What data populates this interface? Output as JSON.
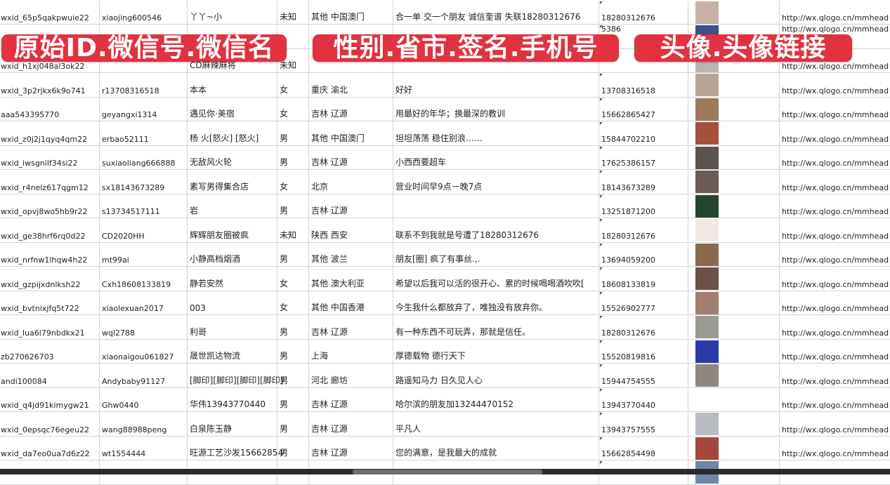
{
  "overlay_labels": [
    "原始ID.微信号.微信名",
    "性别.省市.签名.手机号",
    "头像.头像链接"
  ],
  "rows": [
    {
      "id": "wxid_65p5qakpwuie22",
      "wechat": "xiaojing600546",
      "name": "丫丫~小",
      "gender": "未知",
      "region": "其他 中国澳门",
      "signature": "合一单 交一个朋友 诚信奎谱 失联18280312676",
      "phone": "18280312676",
      "avatar_color": "#c9b0a6",
      "url": "http://wx.qlogo.cn/mmhead"
    },
    {
      "id": "",
      "wechat": "",
      "name": "",
      "gender": "",
      "region": "",
      "signature": "",
      "phone": "5386",
      "avatar_color": "#3e4f8a",
      "url": "http://wx.qlogo.cn/mmhead"
    },
    {
      "id": "wxid_h1xj048al3ok22",
      "wechat": "",
      "name": "CD麻辣麻将",
      "gender": "未知",
      "region": "",
      "signature": "",
      "phone": "",
      "avatar_color": "#b9b5b0",
      "url": "http://wx.qlogo.cn/mmhead"
    },
    {
      "id": "wxid_3p2rjkx6k9o741",
      "wechat": "r13708316518",
      "name": "本本",
      "gender": "女",
      "region": "重庆 渝北",
      "signature": "好好",
      "phone": "13708316518",
      "avatar_color": "#b7a597",
      "url": "http://wx.qlogo.cn/mmhead"
    },
    {
      "id": "aaa543395770",
      "wechat": "geyangxi1314",
      "name": "遇见你·美宿",
      "gender": "女",
      "region": "吉林 辽源",
      "signature": "用最好的年华；换最深的教训",
      "phone": "15662865427",
      "avatar_color": "#9d7a5c",
      "url": "http://wx.qlogo.cn/mmhead"
    },
    {
      "id": "wxid_z0j2j1qyq4qm22",
      "wechat": "erbao52111",
      "name": "杨 火[怒火] [怒火]",
      "gender": "男",
      "region": "其他 中国澳门",
      "signature": "坦坦荡荡 稳住别浪……",
      "phone": "15844702210",
      "avatar_color": "#a3503d",
      "url": "http://wx.qlogo.cn/mmhead"
    },
    {
      "id": "wxid_iwsgnilf34si22",
      "wechat": "suxiaoliang666888",
      "name": "无敌风火轮",
      "gender": "男",
      "region": "吉林 辽源",
      "signature": "小西西要超车",
      "phone": "17625386157",
      "avatar_color": "#5c5350",
      "url": "http://wx.qlogo.cn/mmhead"
    },
    {
      "id": "wxid_r4nelz617qgm12",
      "wechat": "sx18143673289",
      "name": "素写男得集合店",
      "gender": "女",
      "region": "北京",
      "signature": "营业时间早9点－晚7点",
      "phone": "18143673289",
      "avatar_color": "#6b5a55",
      "url": "http://wx.qlogo.cn/mmhead"
    },
    {
      "id": "wxid_opvj8wo5hb9r22",
      "wechat": "s13734517111",
      "name": "岩",
      "gender": "男",
      "region": "吉林 辽源",
      "signature": "",
      "phone": "13251871200",
      "avatar_color": "#23452f",
      "url": "http://wx.qlogo.cn/mmhead"
    },
    {
      "id": "wxid_ge38hrf6rq0d22",
      "wechat": "CD2020HH",
      "name": "辉辉朋友圈被疯",
      "gender": "未知",
      "region": "陕西 西安",
      "signature": "联系不到我就是号遭了18280312676",
      "phone": "18280312676",
      "avatar_color": "#f1e8e4",
      "url": "http://wx.qlogo.cn/mmhead"
    },
    {
      "id": "wxid_nrfnw1lhqw4h22",
      "wechat": "mt99ai",
      "name": "小静高档烟酒",
      "gender": "男",
      "region": "其他 波兰",
      "signature": "朋友[圈] 疯了有事丝.,.",
      "phone": "13694059200",
      "avatar_color": "#8a6a4e",
      "url": "http://wx.qlogo.cn/mmhead"
    },
    {
      "id": "wxid_gzpijxdnlksh22",
      "wechat": "Cxh18608133819",
      "name": "静若安然",
      "gender": "女",
      "region": "其他 澳大利亚",
      "signature": "希望以后我可以活的很开心、累的时候喝喝酒吹吹[",
      "phone": "18608133819",
      "avatar_color": "#6b5048",
      "url": "http://wx.qlogo.cn/mmhead"
    },
    {
      "id": "wxid_bvtnixjfq5t722",
      "wechat": "xiaolexuan2017",
      "name": "003",
      "gender": "女",
      "region": "其他 中国香港",
      "signature": "今生我什么都放弃了，唯独没有放弃你。",
      "phone": "15526902777",
      "avatar_color": "#a07f70",
      "url": "http://wx.qlogo.cn/mmhead"
    },
    {
      "id": "wxid_lua6l79nbdkx21",
      "wechat": "wql2788",
      "name": "利哥",
      "gender": "男",
      "region": "吉林 辽源",
      "signature": "有一种东西不可玩弄，那就是信任。",
      "phone": "18280312676",
      "avatar_color": "#9a9a94",
      "url": "http://wx.qlogo.cn/mmhead"
    },
    {
      "id": "zb270626703",
      "wechat": "xiaonaigou061827",
      "name": "晟世凯达物流",
      "gender": "男",
      "region": "上海",
      "signature": "厚德载物 德行天下",
      "phone": "15520819816",
      "avatar_color": "#2b3aa8",
      "url": "http://wx.qlogo.cn/mmhead"
    },
    {
      "id": "andi100084",
      "wechat": "Andybaby91127",
      "name": "[脚印][脚印][脚印][脚印]",
      "gender": "男",
      "region": "河北 廊坊",
      "signature": "路遥知马力 日久见人心",
      "phone": "15944754555",
      "avatar_color": "#8e8680",
      "url": "http://wx.qlogo.cn/mmhead"
    },
    {
      "id": "wxid_q4jd91kimygw21",
      "wechat": "Ghw0440",
      "name": "华伟13943770440",
      "gender": "男",
      "region": "吉林 辽源",
      "signature": "哈尔滨的朋友加13244470152",
      "phone": "13943770440",
      "avatar_color": "#ffffff",
      "url": "http://wx.qlogo.cn/mmhead"
    },
    {
      "id": "wxid_0epsqc76egeu22",
      "wechat": "wang88988peng",
      "name": "白泉陈玉静",
      "gender": "男",
      "region": "吉林 辽源",
      "signature": "平凡人",
      "phone": "13943757555",
      "avatar_color": "#b8bcc0",
      "url": "http://wx.qlogo.cn/mmhead"
    },
    {
      "id": "wxid_da7eo0ua7d6z22",
      "wechat": "wt1554444",
      "name": "旺源工艺沙发15662854",
      "gender": "男",
      "region": "吉林 辽源",
      "signature": "您的满意，是我最大的成就",
      "phone": "15662854498",
      "avatar_color": "#a3483a",
      "url": "http://wx.qlogo.cn/mmhead"
    },
    {
      "id": "",
      "wechat": "",
      "name": "",
      "gender": "",
      "region": "",
      "signature": "",
      "phone": "",
      "avatar_color": "#6f86a8",
      "url": ""
    }
  ]
}
